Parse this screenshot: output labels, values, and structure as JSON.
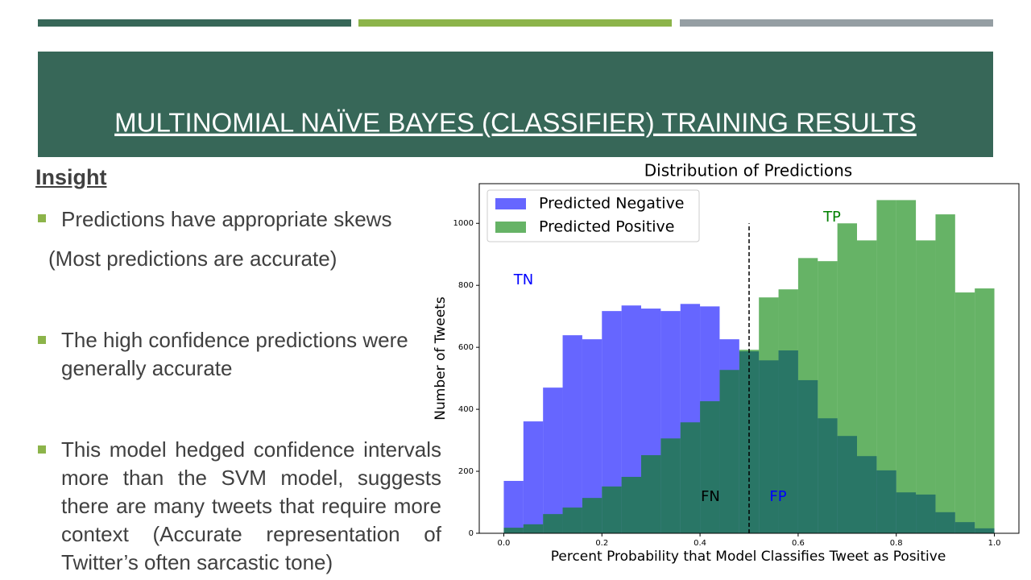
{
  "slide": {
    "title": "MULTINOMIAL NAÏVE BAYES (CLASSIFIER) TRAINING RESULTS",
    "heading": "Insight",
    "bullets": [
      "Predictions have appropriate skews",
      "The high confidence predictions were generally accurate",
      "This model hedged confidence intervals more than the SVM model, suggests there are many tweets that require more context (Accurate representation of Twitter’s often sarcastic tone)"
    ],
    "note": "(Most predictions are accurate)"
  },
  "chart_data": {
    "type": "histogram",
    "title": "Distribution of Predictions",
    "x_label": "Percent Probability that Model Classifies Tweet as Positive",
    "y_label": "Number of Tweets",
    "bins": [
      0,
      0.04,
      0.08,
      0.12,
      0.16,
      0.2,
      0.24,
      0.28,
      0.32,
      0.36,
      0.4,
      0.44,
      0.48,
      0.52,
      0.56,
      0.6,
      0.64,
      0.68,
      0.72,
      0.76,
      0.8,
      0.84,
      0.88,
      0.92,
      0.96,
      1
    ],
    "series": [
      {
        "name": "Predicted Negative",
        "color": "#0000ff",
        "values": [
          169,
          361,
          470,
          639,
          626,
          717,
          735,
          725,
          717,
          740,
          732,
          626,
          587,
          558,
          590,
          494,
          371,
          314,
          249,
          203,
          132,
          125,
          68,
          36,
          16
        ]
      },
      {
        "name": "Predicted Positive",
        "color": "#008000",
        "values": [
          18,
          29,
          62,
          83,
          114,
          151,
          182,
          252,
          306,
          358,
          426,
          527,
          592,
          761,
          787,
          888,
          878,
          1000,
          945,
          1075,
          1075,
          945,
          1029,
          777,
          790
        ]
      }
    ],
    "opacity": 0.6,
    "vline": {
      "x": 0.5,
      "ymax": 1000
    },
    "annotations": [
      {
        "text": "TN",
        "color": "#0000ff"
      },
      {
        "text": "TP",
        "color": "#008000"
      },
      {
        "text": "FN",
        "color": "#000000"
      },
      {
        "text": "FP",
        "color": "#0000ff"
      }
    ],
    "xlim": [
      -0.05,
      1.05
    ],
    "ylim": [
      0,
      1128
    ],
    "xticks": [
      {
        "value": 0,
        "label": "0.0"
      },
      {
        "value": 0.2,
        "label": "0.2"
      },
      {
        "value": 0.4,
        "label": "0.4"
      },
      {
        "value": 0.6,
        "label": "0.6"
      },
      {
        "value": 0.8,
        "label": "0.8"
      },
      {
        "value": 1,
        "label": "1.0"
      }
    ],
    "yticks": [
      0,
      200,
      400,
      600,
      800,
      1000
    ],
    "legend": "upper left"
  }
}
